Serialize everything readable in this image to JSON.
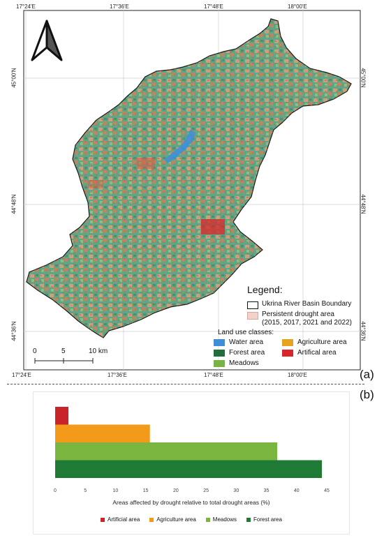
{
  "panel_a": {
    "label": "(a)",
    "coords": {
      "top": [
        "17°24'E",
        "17°36'E",
        "17°48'E",
        "18°00'E"
      ],
      "bottom": [
        "17°24'E",
        "17°36'E",
        "17°48'E",
        "18°00'E"
      ],
      "left": [
        "45°00'N",
        "44°48'N",
        "44°36'N"
      ],
      "right": [
        "45°00'N",
        "44°48'N",
        "44°36'N"
      ]
    },
    "legend": {
      "title": "Legend:",
      "boundary": "Ukrina River Basin Boundary",
      "persistent_line1": "Persistent drought area",
      "persistent_line2": "(2015, 2017, 2021 and 2022)",
      "land_use_title": "Land use classes:",
      "classes": [
        {
          "label": "Water area",
          "color": "#3f8fd8"
        },
        {
          "label": "Agriculture area",
          "color": "#e7a21e"
        },
        {
          "label": "Forest area",
          "color": "#1f6e3b"
        },
        {
          "label": "Artifical area",
          "color": "#d8262b"
        },
        {
          "label": "Meadows",
          "color": "#79b346"
        }
      ]
    },
    "scale_bar": {
      "labels": [
        "0",
        "5",
        "10 km"
      ]
    },
    "north_arrow": "north-arrow-icon"
  },
  "panel_b": {
    "label": "(b)"
  },
  "chart_data": {
    "type": "bar",
    "orientation": "horizontal",
    "categories": [
      "Artificial area",
      "Agriculture area",
      "Meadows",
      "Forest area"
    ],
    "values": [
      2.2,
      15.7,
      36.8,
      44.2
    ],
    "colors": [
      "#c9242a",
      "#f39a1a",
      "#7ab53f",
      "#1e7a35"
    ],
    "xlabel": "Areas affected by drought relative to total drought areas (%)",
    "ylabel": "",
    "xlim": [
      0,
      45
    ],
    "xticks": [
      "0",
      "5",
      "10",
      "15",
      "20",
      "25",
      "30",
      "35",
      "40",
      "45"
    ],
    "legend": [
      "Artificial area",
      "Agriculture area",
      "Meadows",
      "Forest area"
    ],
    "legend_position": "bottom",
    "grid": false
  }
}
